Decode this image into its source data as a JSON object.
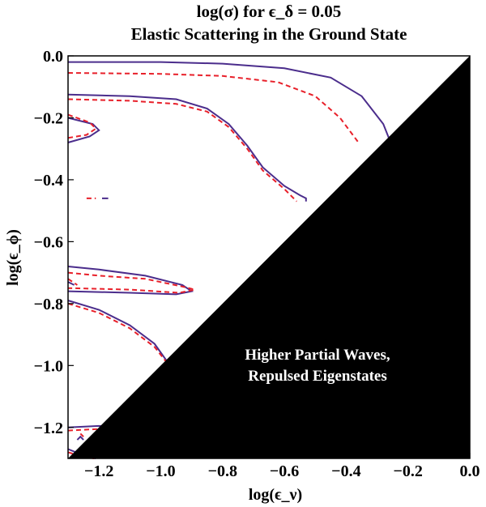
{
  "chart_data": {
    "type": "line",
    "title": "log(σ) for ϵ_δ = 0.05",
    "subtitle": "Elastic Scattering in the Ground State",
    "xlabel": "log(ϵ_ν)",
    "ylabel": "log(ϵ_ϕ)",
    "xlim": [
      -1.3,
      0.0
    ],
    "ylim": [
      -1.3,
      0.0
    ],
    "xticks": [
      "−1.2",
      "−1.0",
      "−0.8",
      "−0.6",
      "−0.4",
      "−0.2",
      "0.0"
    ],
    "yticks": [
      "0.0",
      "−0.2",
      "−0.4",
      "−0.6",
      "−0.8",
      "−1.0",
      "−1.2"
    ],
    "grid": false,
    "excluded_region": {
      "label_line1": "Higher Partial Waves,",
      "label_line2": "Repulsed Eigenstates",
      "color": "#000000"
    },
    "colors": {
      "solid": "#4b2d8c",
      "dashed": "#e8202a"
    },
    "series": [
      {
        "style": "solid",
        "x": [
          -1.3,
          -1.0,
          -0.8,
          -0.6,
          -0.45,
          -0.35,
          -0.28,
          -0.26
        ],
        "y": [
          -0.02,
          -0.02,
          -0.025,
          -0.04,
          -0.07,
          -0.13,
          -0.22,
          -0.27
        ]
      },
      {
        "style": "dashed",
        "x": [
          -1.3,
          -1.0,
          -0.8,
          -0.62,
          -0.5,
          -0.42,
          -0.36
        ],
        "y": [
          -0.055,
          -0.058,
          -0.065,
          -0.085,
          -0.13,
          -0.2,
          -0.28
        ]
      },
      {
        "style": "solid",
        "x": [
          -1.3,
          -1.1,
          -0.95,
          -0.85,
          -0.78,
          -0.72,
          -0.67,
          -0.6,
          -0.55,
          -0.53,
          -0.53
        ],
        "y": [
          -0.125,
          -0.13,
          -0.14,
          -0.17,
          -0.22,
          -0.29,
          -0.36,
          -0.42,
          -0.45,
          -0.46,
          -0.47
        ]
      },
      {
        "style": "dashed",
        "x": [
          -1.3,
          -1.1,
          -0.95,
          -0.85,
          -0.78,
          -0.72,
          -0.67,
          -0.6,
          -0.56
        ],
        "y": [
          -0.14,
          -0.145,
          -0.155,
          -0.18,
          -0.23,
          -0.3,
          -0.37,
          -0.43,
          -0.47
        ]
      },
      {
        "style": "solid",
        "x": [
          -1.3,
          -1.22,
          -1.2,
          -1.23,
          -1.3
        ],
        "y": [
          -0.2,
          -0.22,
          -0.24,
          -0.26,
          -0.28
        ]
      },
      {
        "style": "dashed",
        "x": [
          -1.3,
          -1.23,
          -1.21,
          -1.24,
          -1.3
        ],
        "y": [
          -0.19,
          -0.215,
          -0.235,
          -0.255,
          -0.265
        ]
      },
      {
        "style": "solid",
        "x": [
          -1.3,
          -1.2,
          -1.05,
          -0.93,
          -0.9,
          -0.95,
          -1.1,
          -1.3
        ],
        "y": [
          -0.68,
          -0.69,
          -0.71,
          -0.74,
          -0.76,
          -0.77,
          -0.765,
          -0.76
        ]
      },
      {
        "style": "dashed",
        "x": [
          -1.3,
          -1.2,
          -1.05,
          -0.93,
          -0.89,
          -0.94,
          -1.1,
          -1.3
        ],
        "y": [
          -0.7,
          -0.71,
          -0.72,
          -0.745,
          -0.755,
          -0.765,
          -0.755,
          -0.75
        ]
      },
      {
        "style": "solid",
        "x": [
          -1.3,
          -1.2,
          -1.1,
          -1.02,
          -0.97,
          -0.92
        ],
        "y": [
          -0.79,
          -0.82,
          -0.87,
          -0.93,
          -1.0,
          -1.05
        ]
      },
      {
        "style": "dashed",
        "x": [
          -1.3,
          -1.2,
          -1.1,
          -1.02,
          -0.965,
          -0.915
        ],
        "y": [
          -0.8,
          -0.83,
          -0.88,
          -0.94,
          -1.01,
          -1.06
        ]
      },
      {
        "style": "solid",
        "x": [
          -0.77,
          -0.75,
          -0.72
        ],
        "y": [
          -0.79,
          -0.78,
          -0.77
        ]
      },
      {
        "style": "dashed",
        "x": [
          -0.77,
          -0.745,
          -0.72
        ],
        "y": [
          -0.795,
          -0.785,
          -0.775
        ]
      },
      {
        "style": "solid",
        "x": [
          -1.3,
          -1.2,
          -1.1,
          -1.05
        ],
        "y": [
          -1.2,
          -1.195,
          -1.2,
          -1.21
        ]
      },
      {
        "style": "dashed",
        "x": [
          -1.3,
          -1.2,
          -1.1,
          -1.05
        ],
        "y": [
          -1.21,
          -1.205,
          -1.21,
          -1.22
        ]
      },
      {
        "style": "solid",
        "x": [
          -1.3,
          -1.25,
          -1.21
        ],
        "y": [
          -1.27,
          -1.29,
          -1.3
        ]
      },
      {
        "style": "dashed",
        "x": [
          -1.3,
          -1.25,
          -1.215
        ],
        "y": [
          -1.28,
          -1.295,
          -1.3
        ]
      },
      {
        "style": "solid",
        "x": [
          -1.27,
          -1.26,
          -1.25
        ],
        "y": [
          -1.24,
          -1.23,
          -1.24
        ]
      },
      {
        "style": "dashed",
        "x": [
          -1.26,
          -1.25
        ],
        "y": [
          -1.22,
          -1.23
        ]
      },
      {
        "style": "solid",
        "x": [
          -1.3,
          -1.28
        ],
        "y": [
          -0.73,
          -0.74
        ]
      },
      {
        "style": "dashed",
        "x": [
          -1.3,
          -1.27
        ],
        "y": [
          -0.72,
          -0.74
        ]
      },
      {
        "style": "dashed",
        "x": [
          -1.24,
          -1.21
        ],
        "y": [
          -0.46,
          -0.46
        ]
      },
      {
        "style": "solid",
        "x": [
          -1.19,
          -1.17
        ],
        "y": [
          -0.46,
          -0.46
        ]
      }
    ]
  }
}
